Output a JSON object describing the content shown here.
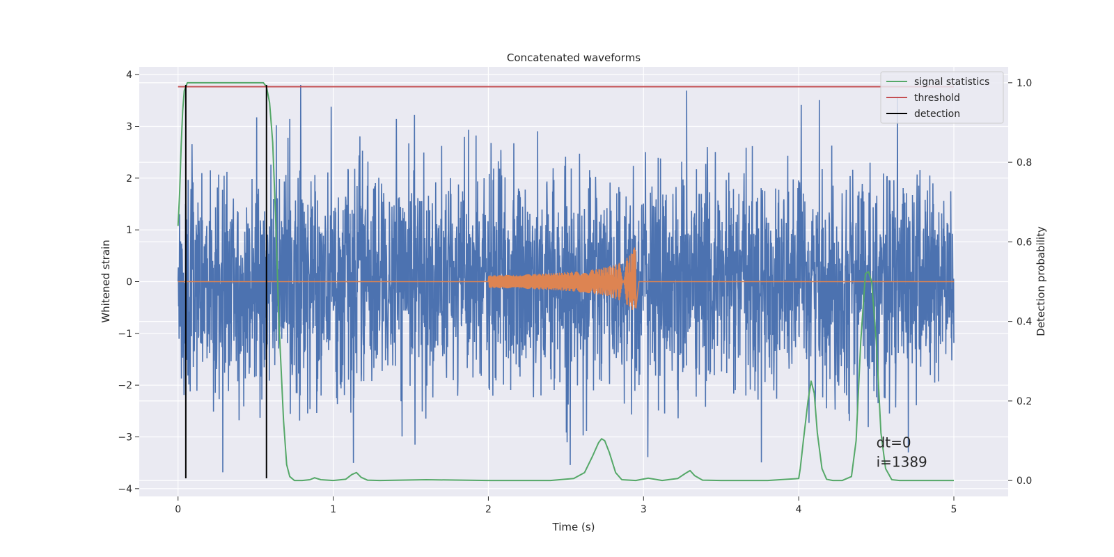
{
  "chart_data": {
    "type": "line",
    "title": "Concatenated waveforms",
    "xlabel": "Time (s)",
    "ylabel": "Whitened strain",
    "ylabel_right": "Detection probability",
    "xlim": [
      -0.25,
      5.35
    ],
    "ylim": [
      -4.15,
      4.15
    ],
    "ylim_right": [
      -0.04,
      1.04
    ],
    "xticks": [
      0,
      1,
      2,
      3,
      4,
      5
    ],
    "yticks": [
      -4,
      -3,
      -2,
      -1,
      0,
      1,
      2,
      3,
      4
    ],
    "yticks_right": [
      0.0,
      0.2,
      0.4,
      0.6,
      0.8,
      1.0
    ],
    "xtick_labels": [
      "0",
      "1",
      "2",
      "3",
      "4",
      "5"
    ],
    "ytick_labels": [
      "−4",
      "−3",
      "−2",
      "−1",
      "0",
      "1",
      "2",
      "3",
      "4"
    ],
    "ytick_right_labels": [
      "0.0",
      "0.2",
      "0.4",
      "0.6",
      "0.8",
      "1.0"
    ],
    "grid": true,
    "legend_position": "upper-right",
    "colors": {
      "strain": "#4c72b0",
      "template": "#dd8452",
      "signal_statistics": "#55a868",
      "threshold": "#c44e52",
      "detection": "#000000",
      "background": "#eaeaf2",
      "grid": "#ffffff"
    },
    "legend": [
      {
        "label": "signal statistics",
        "color": "#55a868"
      },
      {
        "label": "threshold",
        "color": "#c44e52"
      },
      {
        "label": "detection",
        "color": "#000000"
      }
    ],
    "series": [
      {
        "name": "signal statistics",
        "axis": "right",
        "x": [
          0.0,
          0.01,
          0.02,
          0.03,
          0.04,
          0.06,
          0.08,
          0.1,
          0.2,
          0.3,
          0.4,
          0.5,
          0.55,
          0.57,
          0.59,
          0.61,
          0.63,
          0.65,
          0.68,
          0.7,
          0.72,
          0.75,
          0.8,
          0.85,
          0.88,
          0.92,
          1.0,
          1.08,
          1.12,
          1.15,
          1.18,
          1.22,
          1.3,
          1.6,
          2.0,
          2.4,
          2.55,
          2.62,
          2.67,
          2.71,
          2.73,
          2.75,
          2.78,
          2.82,
          2.86,
          2.95,
          3.03,
          3.12,
          3.22,
          3.27,
          3.3,
          3.33,
          3.38,
          3.5,
          3.8,
          4.0,
          4.01,
          4.03,
          4.06,
          4.08,
          4.1,
          4.12,
          4.15,
          4.18,
          4.22,
          4.28,
          4.34,
          4.37,
          4.4,
          4.43,
          4.45,
          4.47,
          4.5,
          4.53,
          4.56,
          4.6,
          4.65,
          4.75,
          5.0
        ],
        "y": [
          0.64,
          0.72,
          0.84,
          0.93,
          0.98,
          1.0,
          1.0,
          1.0,
          1.0,
          1.0,
          1.0,
          1.0,
          1.0,
          0.99,
          0.95,
          0.85,
          0.65,
          0.4,
          0.15,
          0.04,
          0.01,
          0.0,
          0.0,
          0.002,
          0.007,
          0.002,
          0.0,
          0.003,
          0.015,
          0.02,
          0.008,
          0.001,
          0.0,
          0.002,
          0.0,
          0.0,
          0.005,
          0.02,
          0.06,
          0.095,
          0.105,
          0.1,
          0.07,
          0.02,
          0.002,
          0.0,
          0.006,
          0.0,
          0.005,
          0.018,
          0.025,
          0.012,
          0.001,
          0.0,
          0.0,
          0.005,
          0.03,
          0.1,
          0.2,
          0.25,
          0.22,
          0.12,
          0.03,
          0.003,
          0.0,
          0.0,
          0.01,
          0.1,
          0.35,
          0.52,
          0.525,
          0.5,
          0.35,
          0.12,
          0.03,
          0.002,
          0.0,
          0.0,
          0.0
        ]
      },
      {
        "name": "threshold",
        "axis": "right",
        "x": [
          0.0,
          5.0
        ],
        "y": [
          0.99,
          0.99
        ]
      },
      {
        "name": "detection",
        "axis": "left",
        "type": "vlines",
        "x": [
          0.05,
          0.57
        ],
        "y_range": [
          -3.8,
          3.8
        ]
      }
    ],
    "annotations": [
      {
        "text": "dt=0",
        "x": 4.5,
        "y": -3.2
      },
      {
        "text": "i=1389",
        "x": 4.5,
        "y": -3.58
      }
    ]
  }
}
